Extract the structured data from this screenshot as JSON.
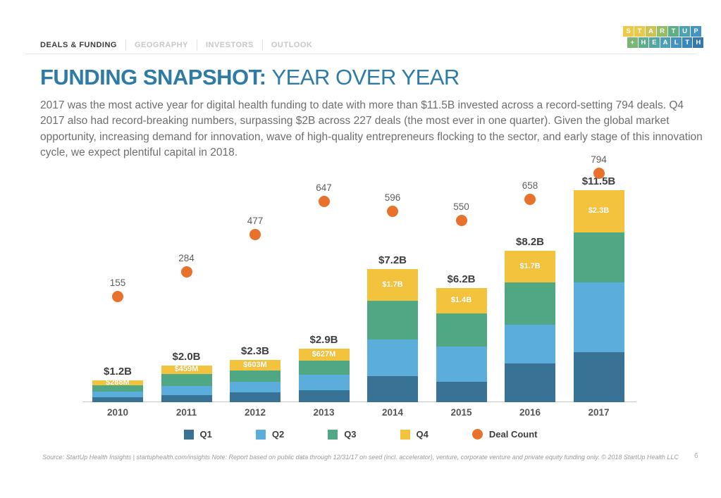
{
  "nav": {
    "tabs": [
      {
        "label": "DEALS & FUNDING",
        "active": true
      },
      {
        "label": "GEOGRAPHY",
        "active": false
      },
      {
        "label": "INVESTORS",
        "active": false
      },
      {
        "label": "OUTLOOK",
        "active": false
      }
    ]
  },
  "logo": {
    "row1": [
      {
        "ch": "S",
        "color": "#EFC844"
      },
      {
        "ch": "T",
        "color": "#E9C94C"
      },
      {
        "ch": "A",
        "color": "#C9C453"
      },
      {
        "ch": "R",
        "color": "#93BE68"
      },
      {
        "ch": "T",
        "color": "#5FAF86"
      },
      {
        "ch": "U",
        "color": "#4BA3B2"
      },
      {
        "ch": "P",
        "color": "#4394C5"
      }
    ],
    "row2": [
      {
        "ch": "+",
        "color": "#79B674"
      },
      {
        "ch": "H",
        "color": "#5FAE8B"
      },
      {
        "ch": "E",
        "color": "#52A8A1"
      },
      {
        "ch": "A",
        "color": "#4C9FB8"
      },
      {
        "ch": "L",
        "color": "#4492C2"
      },
      {
        "ch": "T",
        "color": "#3D86BB"
      },
      {
        "ch": "H",
        "color": "#3478AE"
      }
    ]
  },
  "header": {
    "title_bold": "FUNDING SNAPSHOT:",
    "title_regular": "YEAR OVER YEAR",
    "title_color": "#2E7BA6"
  },
  "intro": {
    "text": "2017 was the most active year for digital health funding to date with more than $11.5B invested across a record-setting 794 deals. Q4 2017 also had record-breaking numbers, surpassing $2B across 227 deals (the most ever in one quarter). Given the global market opportunity, increasing demand for innovation, wave of high-quality entrepreneurs flocking to the sector, and early stage of this innovation cycle, we expect plentiful capital in 2018."
  },
  "chart_data": {
    "type": "bar",
    "stacked": true,
    "title": "FUNDING SNAPSHOT: YEAR OVER YEAR",
    "unit": "USD billions",
    "categories": [
      "2010",
      "2011",
      "2012",
      "2013",
      "2014",
      "2015",
      "2016",
      "2017"
    ],
    "series": [
      {
        "name": "Q1",
        "color": "#387294",
        "values": [
          0.25,
          0.38,
          0.55,
          0.63,
          1.4,
          1.1,
          2.1,
          2.7
        ]
      },
      {
        "name": "Q2",
        "color": "#5BAEDC",
        "values": [
          0.33,
          0.5,
          0.55,
          0.86,
          2.0,
          1.9,
          2.1,
          3.8
        ]
      },
      {
        "name": "Q3",
        "color": "#4FA783",
        "values": [
          0.33,
          0.66,
          0.6,
          0.78,
          2.1,
          1.8,
          2.3,
          2.7
        ]
      },
      {
        "name": "Q4",
        "color": "#F3C33D",
        "values": [
          0.29,
          0.46,
          0.6,
          0.63,
          1.7,
          1.4,
          1.7,
          2.3
        ]
      }
    ],
    "total_labels": [
      "$1.2B",
      "$2.0B",
      "$2.3B",
      "$2.9B",
      "$7.2B",
      "$6.2B",
      "$8.2B",
      "$11.5B"
    ],
    "q4_segment_labels": [
      "$288M",
      "$459M",
      "$603M",
      "$627M",
      "$1.7B",
      "$1.4B",
      "$1.7B",
      "$2.3B"
    ],
    "deal_counts": {
      "name": "Deal Count",
      "color": "#E8712C",
      "values": [
        155,
        284,
        477,
        647,
        596,
        550,
        658,
        794
      ]
    },
    "legend_position": "bottom",
    "grid": false
  },
  "footer": {
    "source": "Source: StartUp Health Insights | startuphealth.com/insights Note: Report based on public data through 12/31/17 on seed (incl. accelerator), venture, corporate venture and private equity funding only. © 2018 StartUp Health LLC",
    "page": "6"
  }
}
